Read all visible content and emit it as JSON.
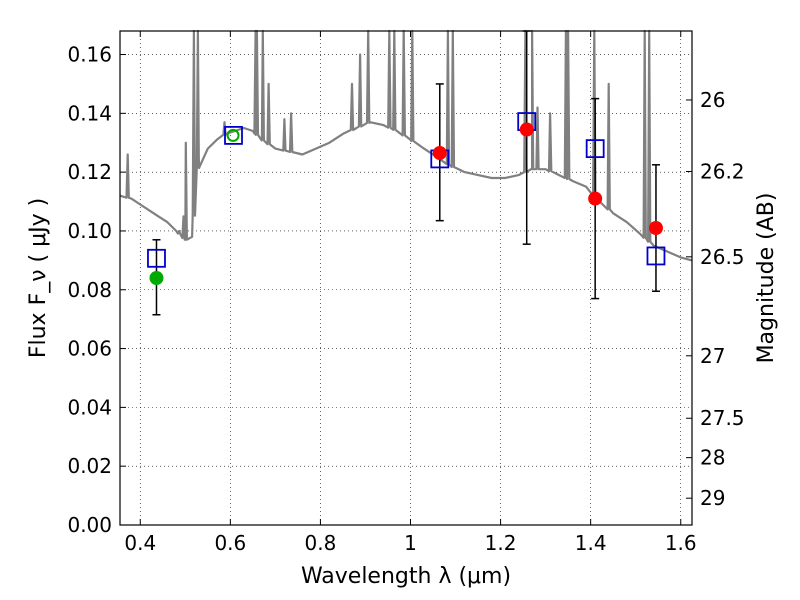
{
  "chart_data": {
    "type": "scatter",
    "xlabel": "Wavelength  λ (μm)",
    "ylabel": "Flux  F_ν  ( μJy )",
    "ylabel_right": "Magnitude (AB)",
    "xlim": [
      0.355,
      1.625
    ],
    "ylim": [
      0.0,
      0.168
    ],
    "grid": true,
    "x_ticks": [
      0.4,
      0.6,
      0.8,
      1.0,
      1.2,
      1.4,
      1.6
    ],
    "x_tick_labels": [
      "0.4",
      "0.6",
      "0.8",
      "1",
      "1.2",
      "1.4",
      "1.6"
    ],
    "y_ticks": [
      0.0,
      0.02,
      0.04,
      0.06,
      0.08,
      0.1,
      0.12,
      0.14,
      0.16
    ],
    "y_tick_labels": [
      "0.00",
      "0.02",
      "0.04",
      "0.06",
      "0.08",
      "0.10",
      "0.12",
      "0.14",
      "0.16"
    ],
    "mag_ticks": [
      26,
      26.2,
      26.5,
      27,
      27.5,
      28,
      29
    ],
    "mag_tick_labels": [
      "26",
      "26.2",
      "26.5",
      "27",
      "27.5",
      "28",
      "29"
    ],
    "observed": {
      "x": [
        0.436,
        1.065,
        1.258,
        1.41,
        1.545
      ],
      "y": [
        0.084,
        0.1265,
        0.1345,
        0.111,
        0.101
      ],
      "yerr_low": [
        0.0715,
        0.1035,
        0.0955,
        0.077,
        0.0795
      ],
      "yerr_high": [
        0.097,
        0.15,
        0.168,
        0.145,
        0.1225
      ],
      "colors": [
        "#00aa00",
        "#ff0000",
        "#ff0000",
        "#ff0000",
        "#ff0000"
      ]
    },
    "model_photometry": {
      "x": [
        0.436,
        0.607,
        1.065,
        1.258,
        1.41,
        1.545
      ],
      "y": [
        0.0907,
        0.1325,
        0.1245,
        0.1372,
        0.128,
        0.0915
      ],
      "color": "#0000cc"
    },
    "optical_point": {
      "x": 0.606,
      "y": 0.1325,
      "color": "#00aa00"
    },
    "sed_color": "#808080",
    "sed_continuum": [
      [
        0.355,
        0.112
      ],
      [
        0.38,
        0.111
      ],
      [
        0.4,
        0.109
      ],
      [
        0.42,
        0.107
      ],
      [
        0.44,
        0.105
      ],
      [
        0.46,
        0.103
      ],
      [
        0.48,
        0.1
      ],
      [
        0.5,
        0.097
      ],
      [
        0.515,
        0.098
      ],
      [
        0.53,
        0.125
      ],
      [
        0.55,
        0.128
      ],
      [
        0.57,
        0.131
      ],
      [
        0.59,
        0.133
      ],
      [
        0.61,
        0.134
      ],
      [
        0.63,
        0.135
      ],
      [
        0.65,
        0.134
      ],
      [
        0.67,
        0.131
      ],
      [
        0.7,
        0.128
      ],
      [
        0.73,
        0.127
      ],
      [
        0.76,
        0.126
      ],
      [
        0.79,
        0.128
      ],
      [
        0.82,
        0.13
      ],
      [
        0.85,
        0.133
      ],
      [
        0.88,
        0.135
      ],
      [
        0.91,
        0.137
      ],
      [
        0.94,
        0.136
      ],
      [
        0.97,
        0.134
      ],
      [
        1.0,
        0.131
      ],
      [
        1.03,
        0.128
      ],
      [
        1.06,
        0.125
      ],
      [
        1.09,
        0.122
      ],
      [
        1.12,
        0.12
      ],
      [
        1.15,
        0.119
      ],
      [
        1.18,
        0.118
      ],
      [
        1.21,
        0.118
      ],
      [
        1.24,
        0.119
      ],
      [
        1.27,
        0.121
      ],
      [
        1.3,
        0.121
      ],
      [
        1.33,
        0.119
      ],
      [
        1.36,
        0.117
      ],
      [
        1.39,
        0.115
      ],
      [
        1.42,
        0.11
      ],
      [
        1.45,
        0.106
      ],
      [
        1.48,
        0.103
      ],
      [
        1.51,
        0.099
      ],
      [
        1.54,
        0.095
      ],
      [
        1.57,
        0.093
      ],
      [
        1.6,
        0.091
      ],
      [
        1.625,
        0.09
      ]
    ],
    "sed_lines": [
      [
        0.372,
        0.126
      ],
      [
        0.486,
        0.1
      ],
      [
        0.496,
        0.105
      ],
      [
        0.501,
        0.13
      ],
      [
        0.519,
        0.168
      ],
      [
        0.528,
        0.168
      ],
      [
        0.587,
        0.137
      ],
      [
        0.656,
        0.168
      ],
      [
        0.659,
        0.168
      ],
      [
        0.672,
        0.168
      ],
      [
        0.685,
        0.15
      ],
      [
        0.72,
        0.138
      ],
      [
        0.735,
        0.14
      ],
      [
        0.87,
        0.15
      ],
      [
        0.888,
        0.16
      ],
      [
        0.906,
        0.168
      ],
      [
        0.953,
        0.168
      ],
      [
        0.964,
        0.168
      ],
      [
        0.985,
        0.168
      ],
      [
        1.004,
        0.168
      ],
      [
        1.083,
        0.168
      ],
      [
        1.094,
        0.168
      ],
      [
        1.255,
        0.168
      ],
      [
        1.27,
        0.168
      ],
      [
        1.282,
        0.142
      ],
      [
        1.31,
        0.14
      ],
      [
        1.345,
        0.168
      ],
      [
        1.35,
        0.168
      ],
      [
        1.408,
        0.168
      ],
      [
        1.44,
        0.15
      ],
      [
        1.52,
        0.168
      ],
      [
        1.53,
        0.168
      ]
    ]
  }
}
